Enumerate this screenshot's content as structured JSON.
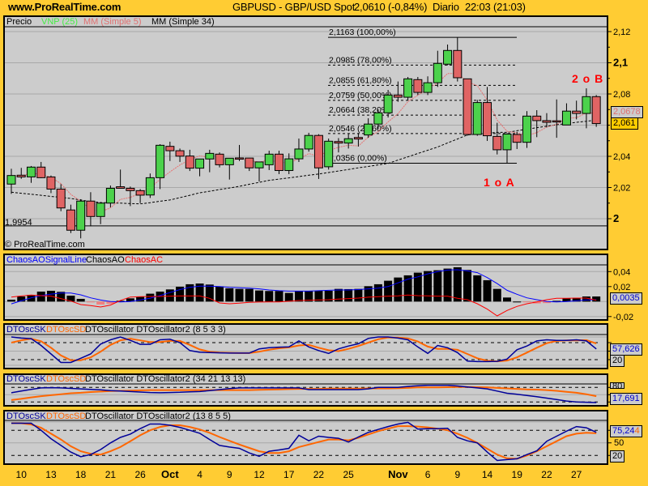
{
  "header": {
    "site": "www.ProRealTime.com",
    "instrument": "GBPUSD - GBP/USD Spot",
    "last": "2,0610 (-0,84%)",
    "period": "Diario",
    "time": "22:03 (21:03)"
  },
  "colors": {
    "background": "#FFCC33",
    "panel": "#CCCCCC",
    "grid": "#A8A8A8",
    "bull": "#4CD24C",
    "bear": "#E06464",
    "ma5": "#E87070",
    "ma34": "#000000",
    "blue": "#000099",
    "orange": "#FF6600",
    "ac": "#FF0000",
    "signal": "#0000FF"
  },
  "main": {
    "legend": {
      "price": "Precio",
      "vnp": "VNP (25)",
      "ma5": "MM (Simple 5)",
      "ma34": "MM (Simple 34)"
    },
    "copyright": "© ProRealTime.com",
    "low_marker": {
      "label": "1,9954",
      "value": 1.9954
    },
    "ma5_tag": "2,0678",
    "price_tag": "2,061",
    "annotations": {
      "top": "2 o B",
      "bottom": "1 o A"
    },
    "axis_ticks": [
      {
        "value": 2.12,
        "label": "2,12",
        "bold": false
      },
      {
        "value": 2.1,
        "label": "2,1",
        "bold": true
      },
      {
        "value": 2.08,
        "label": "2,08",
        "bold": false
      },
      {
        "value": 2.04,
        "label": "2,04",
        "bold": false
      },
      {
        "value": 2.02,
        "label": "2,02",
        "bold": false
      },
      {
        "value": 2.0,
        "label": "2",
        "bold": true
      }
    ],
    "fibonacci": [
      {
        "value": 2.1163,
        "label": "2,1163 (100,00%)",
        "solid": true
      },
      {
        "value": 2.0985,
        "label": "2,0985 (78,00%)",
        "solid": false
      },
      {
        "value": 2.0855,
        "label": "2,0855 (61,80%)",
        "solid": false
      },
      {
        "value": 2.0759,
        "label": "2,0759 (50,00%)",
        "solid": false
      },
      {
        "value": 2.0664,
        "label": "2,0664 (38,20%)",
        "solid": false
      },
      {
        "value": 2.0546,
        "label": "2,0546 (23,60%)",
        "solid": false
      },
      {
        "value": 2.0356,
        "label": "2,0356 (0,00%)",
        "solid": true
      }
    ]
  },
  "chaos": {
    "legend": {
      "signal": "ChaosAOSignalLine",
      "ao": "ChaosAO",
      "ac": "ChaosAC"
    },
    "axis_ticks": [
      {
        "value": 0.04,
        "label": "0,04"
      },
      {
        "value": 0.02,
        "label": "0,02"
      },
      {
        "value": -0.02,
        "label": "-0,02"
      }
    ],
    "last_value": "0,0035"
  },
  "osc1": {
    "legend": {
      "sk": "DTOscSK",
      "sd": "DTOscSD",
      "name": "DTOscillator DTOscillator2 (8 5 3 3)"
    },
    "last_value": "57,626",
    "level_label": "20"
  },
  "osc2": {
    "legend": {
      "sk": "DTOscSK",
      "sd": "DTOscSD",
      "name": "DTOscillator DTOscillator2 (34 21 13 13)"
    },
    "last_value": "17,691",
    "level_label": "80"
  },
  "osc3": {
    "legend": {
      "sk": "DTOscSK",
      "sd": "DTOscSD",
      "name": "DTOscillator DTOscillator2 (13 8 5 5)"
    },
    "last_value": "75,24",
    "last_value_sd_fragment": "4",
    "axis_label": "50",
    "level_label": "20"
  },
  "chart_data": [
    {
      "type": "candlestick",
      "title": "GBPUSD - GBP/USD Spot",
      "ylim": [
        1.988,
        2.13
      ],
      "x_labels": [
        {
          "candle": 2,
          "label": "10"
        },
        {
          "candle": 5,
          "label": "13"
        },
        {
          "candle": 8,
          "label": "18"
        },
        {
          "candle": 11,
          "label": "21"
        },
        {
          "candle": 14,
          "label": "26"
        },
        {
          "candle": 17,
          "label": "Oct",
          "bold": true
        },
        {
          "candle": 20,
          "label": "4"
        },
        {
          "candle": 23,
          "label": "9"
        },
        {
          "candle": 26,
          "label": "12"
        },
        {
          "candle": 29,
          "label": "17"
        },
        {
          "candle": 32,
          "label": "22"
        },
        {
          "candle": 35,
          "label": "25"
        },
        {
          "candle": 40,
          "label": "Nov",
          "bold": true
        },
        {
          "candle": 43,
          "label": "6"
        },
        {
          "candle": 46,
          "label": "9"
        },
        {
          "candle": 49,
          "label": "14"
        },
        {
          "candle": 52,
          "label": "19"
        },
        {
          "candle": 55,
          "label": "22"
        },
        {
          "candle": 58,
          "label": "27"
        }
      ],
      "ohlc": [
        [
          2.0222,
          2.032,
          2.0159,
          2.0277
        ],
        [
          2.0279,
          2.0326,
          2.0256,
          2.0268
        ],
        [
          2.0268,
          2.0338,
          2.023,
          2.0331
        ],
        [
          2.0331,
          2.0364,
          2.026,
          2.0263
        ],
        [
          2.0268,
          2.0277,
          2.0164,
          2.019
        ],
        [
          2.019,
          2.0222,
          2.0048,
          2.0069
        ],
        [
          2.0056,
          2.009,
          1.9908,
          1.9926
        ],
        [
          1.9926,
          2.0125,
          1.9874,
          2.0113
        ],
        [
          2.0113,
          2.017,
          1.9952,
          2.0014
        ],
        [
          2.0014,
          2.0104,
          1.9965,
          2.01
        ],
        [
          2.01,
          2.0213,
          2.0073,
          2.0195
        ],
        [
          2.0205,
          2.0315,
          2.0195,
          2.0195
        ],
        [
          2.0195,
          2.0206,
          2.0081,
          2.018
        ],
        [
          2.018,
          2.019,
          2.01,
          2.0151
        ],
        [
          2.0152,
          2.029,
          2.0133,
          2.0263
        ],
        [
          2.0263,
          2.0478,
          2.019,
          2.0471
        ],
        [
          2.0464,
          2.0494,
          2.037,
          2.0436
        ],
        [
          2.0436,
          2.045,
          2.0364,
          2.0401
        ],
        [
          2.0402,
          2.0442,
          2.0306,
          2.0324
        ],
        [
          2.0324,
          2.0383,
          2.0272,
          2.0383
        ],
        [
          2.0383,
          2.0442,
          2.0298,
          2.0419
        ],
        [
          2.0414,
          2.0425,
          2.0329,
          2.0346
        ],
        [
          2.0346,
          2.0389,
          2.0251,
          2.0388
        ],
        [
          2.039,
          2.0473,
          2.037,
          2.0389
        ],
        [
          2.0389,
          2.039,
          2.0306,
          2.0326
        ],
        [
          2.0326,
          2.0364,
          2.0239,
          2.0364
        ],
        [
          2.0346,
          2.0436,
          2.0312,
          2.0414
        ],
        [
          2.0414,
          2.0436,
          2.0286,
          2.0309
        ],
        [
          2.0309,
          2.0419,
          2.0286,
          2.0384
        ],
        [
          2.0384,
          2.0514,
          2.0364,
          2.0447
        ],
        [
          2.0447,
          2.0551,
          2.043,
          2.0534
        ],
        [
          2.0534,
          2.0542,
          2.0255,
          2.0326
        ],
        [
          2.0333,
          2.0514,
          2.0315,
          2.0497
        ],
        [
          2.0495,
          2.0517,
          2.0425,
          2.0485
        ],
        [
          2.0485,
          2.0544,
          2.045,
          2.0513
        ],
        [
          2.0521,
          2.0549,
          2.0463,
          2.0511
        ],
        [
          2.0537,
          2.0644,
          2.0519,
          2.0607
        ],
        [
          2.0607,
          2.0701,
          2.0575,
          2.0679
        ],
        [
          2.0679,
          2.0826,
          2.0649,
          2.0793
        ],
        [
          2.0793,
          2.088,
          2.075,
          2.0779
        ],
        [
          2.0779,
          2.0909,
          2.0758,
          2.0897
        ],
        [
          2.0892,
          2.0909,
          2.0793,
          2.081
        ],
        [
          2.081,
          2.0913,
          2.0793,
          2.0872
        ],
        [
          2.0872,
          2.1077,
          2.0845,
          2.0996
        ],
        [
          2.0991,
          2.1117,
          2.0984,
          2.1079
        ],
        [
          2.1079,
          2.1162,
          2.088,
          2.0904
        ],
        [
          2.0897,
          2.0897,
          2.0532,
          2.054
        ],
        [
          2.054,
          2.0762,
          2.0532,
          2.0745
        ],
        [
          2.0745,
          2.0845,
          2.0499,
          2.0532
        ],
        [
          2.0528,
          2.0615,
          2.0412,
          2.0442
        ],
        [
          2.0442,
          2.0549,
          2.0355,
          2.0543
        ],
        [
          2.054,
          2.0557,
          2.0447,
          2.049
        ],
        [
          2.049,
          2.069,
          2.0454,
          2.0658
        ],
        [
          2.0658,
          2.0696,
          2.0523,
          2.0629
        ],
        [
          2.0629,
          2.0677,
          2.0586,
          2.0618
        ],
        [
          2.0628,
          2.0765,
          2.0519,
          2.0627
        ],
        [
          2.0601,
          2.074,
          2.0601,
          2.069
        ],
        [
          2.069,
          2.0757,
          2.0637,
          2.0675
        ],
        [
          2.0675,
          2.0836,
          2.058,
          2.0783
        ],
        [
          2.0783,
          2.0793,
          2.0589,
          2.061
        ]
      ],
      "ma34": [
        2.017,
        2.0163,
        2.0157,
        2.015,
        2.0143,
        2.0137,
        2.013,
        2.012,
        2.011,
        2.0104,
        2.0102,
        2.01,
        2.0097,
        2.0095,
        2.0103,
        2.0112,
        2.012,
        2.0135,
        2.015,
        2.0166,
        2.0176,
        2.0187,
        2.0197,
        2.0208,
        2.0221,
        2.0233,
        2.0246,
        2.0254,
        2.0262,
        2.027,
        2.0279,
        2.0287,
        2.0296,
        2.0306,
        2.0316,
        2.0326,
        2.0335,
        2.0345,
        2.0355,
        2.0376,
        2.0397,
        2.0418,
        2.0439,
        2.046,
        2.0486,
        2.0511,
        2.0537,
        2.0543,
        2.0548,
        2.0554,
        2.0554,
        2.0564,
        2.0574,
        2.0584,
        2.0593,
        2.0603,
        2.061,
        2.0618,
        2.0625,
        2.0632
      ]
    },
    {
      "type": "bar+line",
      "ylim": [
        -0.025,
        0.05
      ],
      "ao": [
        0.0025,
        0.0068,
        0.009,
        0.0133,
        0.0144,
        0.013,
        0.0079,
        0.0036,
        -0.001,
        -0.004,
        -0.003,
        0.0011,
        0.0043,
        0.0068,
        0.0105,
        0.0133,
        0.0162,
        0.0198,
        0.0231,
        0.0241,
        0.0227,
        0.0202,
        0.0177,
        0.0169,
        0.0169,
        0.0148,
        0.0141,
        0.0141,
        0.0115,
        0.0141,
        0.0144,
        0.0144,
        0.0144,
        0.0169,
        0.0166,
        0.0169,
        0.0205,
        0.0231,
        0.0278,
        0.0321,
        0.035,
        0.0386,
        0.0407,
        0.0418,
        0.044,
        0.0458,
        0.0422,
        0.035,
        0.0285,
        0.0169,
        0.0054,
        0.0,
        -0.001,
        -0.0025,
        -0.002,
        0.001,
        0.0043,
        0.005,
        0.0068,
        0.0068
      ],
      "ac": [
        0.0061,
        0.0075,
        0.0086,
        0.0079,
        0.0072,
        0.004,
        0.0007,
        -0.004,
        -0.0054,
        -0.0072,
        -0.0047,
        0.0014,
        0.0061,
        0.0065,
        0.0068,
        0.0068,
        0.0072,
        0.0075,
        0.0075,
        0.0075,
        0.0043,
        -0.0018,
        -0.0029,
        -0.0022,
        -0.0011,
        -0.0007,
        -0.0004,
        -0.0004,
        0.0004,
        0.0014,
        0.0018,
        0.0022,
        0.0025,
        0.0032,
        0.004,
        0.0047,
        0.0058,
        0.0065,
        0.0072,
        0.0076,
        0.0086,
        0.0079,
        0.0076,
        0.0072,
        0.0072,
        0.0043,
        0.0025,
        -0.0029,
        -0.0101,
        -0.0191,
        -0.0119,
        -0.0065,
        -0.0029,
        -0.0004,
        0.0025,
        0.0043,
        0.0043,
        0.0047,
        0.0047,
        0.0018
      ],
      "signal": [
        -0.003,
        0.001,
        0.005,
        0.008,
        0.01,
        0.0115,
        0.0115,
        0.009,
        0.005,
        0.002,
        0.0,
        -0.0005,
        0.0,
        0.002,
        0.0045,
        0.008,
        0.012,
        0.016,
        0.019,
        0.0205,
        0.0205,
        0.02,
        0.019,
        0.0185,
        0.018,
        0.017,
        0.0155,
        0.0145,
        0.014,
        0.014,
        0.014,
        0.0145,
        0.015,
        0.0155,
        0.0155,
        0.016,
        0.017,
        0.018,
        0.02,
        0.025,
        0.03,
        0.033,
        0.037,
        0.04,
        0.042,
        0.0425,
        0.041,
        0.0386,
        0.032,
        0.024,
        0.015,
        0.0097,
        0.005,
        0.0025,
        0.0,
        -0.0004,
        0.0,
        0.001,
        0.002,
        0.0025
      ]
    },
    {
      "type": "line",
      "ylim": [
        0,
        100
      ],
      "levels": [
        20,
        80
      ],
      "sk": [
        100,
        96,
        94,
        70,
        40,
        10,
        10,
        25,
        40,
        75,
        90,
        100,
        88,
        74,
        74,
        90,
        92,
        80,
        52,
        46,
        45,
        44,
        43,
        43,
        43,
        58,
        62,
        64,
        65,
        86,
        65,
        52,
        42,
        58,
        68,
        76,
        95,
        100,
        100,
        96,
        90,
        65,
        42,
        70,
        62,
        45,
        15,
        13,
        13,
        14,
        22,
        55,
        68,
        86,
        90,
        88,
        88,
        90,
        86,
        57.6
      ],
      "sd": [
        80,
        88,
        94,
        85,
        62,
        35,
        18,
        18,
        28,
        48,
        72,
        88,
        94,
        88,
        82,
        82,
        86,
        86,
        72,
        56,
        48,
        45,
        44,
        43,
        43,
        48,
        55,
        60,
        63,
        70,
        72,
        62,
        53,
        50,
        58,
        68,
        80,
        92,
        98,
        98,
        95,
        84,
        66,
        58,
        58,
        55,
        40,
        25,
        16,
        14,
        17,
        28,
        45,
        62,
        78,
        86,
        88,
        88,
        89,
        77
      ]
    },
    {
      "type": "line",
      "ylim": [
        0,
        100
      ],
      "levels": [
        20,
        80
      ],
      "sk": [
        58,
        65,
        72,
        78,
        79,
        78,
        76,
        74,
        72,
        70,
        67,
        65,
        63,
        61,
        59,
        58,
        59,
        60,
        62,
        63,
        67,
        71,
        75,
        78,
        78,
        78,
        78,
        78,
        78,
        78,
        71,
        71,
        71,
        71,
        71,
        71,
        74,
        80,
        80,
        80,
        84,
        87,
        89,
        89,
        89,
        86,
        82,
        78,
        74,
        65,
        56,
        52,
        47,
        42,
        36,
        30,
        24,
        20,
        19,
        17.7
      ],
      "sd": [
        28,
        33,
        39,
        44,
        48,
        52,
        56,
        58,
        61,
        63,
        65,
        66,
        67,
        68,
        69,
        69,
        69,
        69,
        69,
        69,
        69,
        69,
        69,
        69,
        69,
        70,
        71,
        72,
        73,
        74,
        74,
        74,
        75,
        75,
        75,
        75,
        76,
        76,
        76,
        77,
        78,
        80,
        80,
        80,
        81,
        82,
        82,
        81,
        80,
        78,
        76,
        74,
        72,
        71,
        69,
        66,
        62,
        58,
        52,
        44
      ]
    },
    {
      "type": "line",
      "ylim": [
        0,
        100
      ],
      "levels": [
        20,
        80
      ],
      "sk": [
        97,
        97,
        97,
        80,
        60,
        44,
        28,
        17,
        22,
        34,
        50,
        63,
        71,
        84,
        95,
        95,
        92,
        87,
        80,
        73,
        58,
        44,
        40,
        37,
        26,
        18,
        30,
        33,
        37,
        68,
        55,
        66,
        63,
        61,
        52,
        64,
        75,
        82,
        89,
        95,
        99,
        83,
        84,
        84,
        85,
        63,
        55,
        50,
        28,
        8,
        10,
        12,
        22,
        31,
        54,
        66,
        78,
        89,
        86,
        75.24
      ],
      "sd": [
        97,
        97,
        94,
        86,
        72,
        58,
        42,
        30,
        24,
        22,
        30,
        40,
        54,
        68,
        80,
        88,
        92,
        92,
        88,
        82,
        74,
        64,
        55,
        46,
        38,
        30,
        26,
        26,
        30,
        40,
        46,
        52,
        58,
        58,
        56,
        62,
        70,
        78,
        84,
        90,
        90,
        89,
        87,
        84,
        80,
        72,
        62,
        50,
        36,
        22,
        13,
        12,
        20,
        30,
        42,
        54,
        66,
        72,
        74,
        73
      ]
    }
  ]
}
